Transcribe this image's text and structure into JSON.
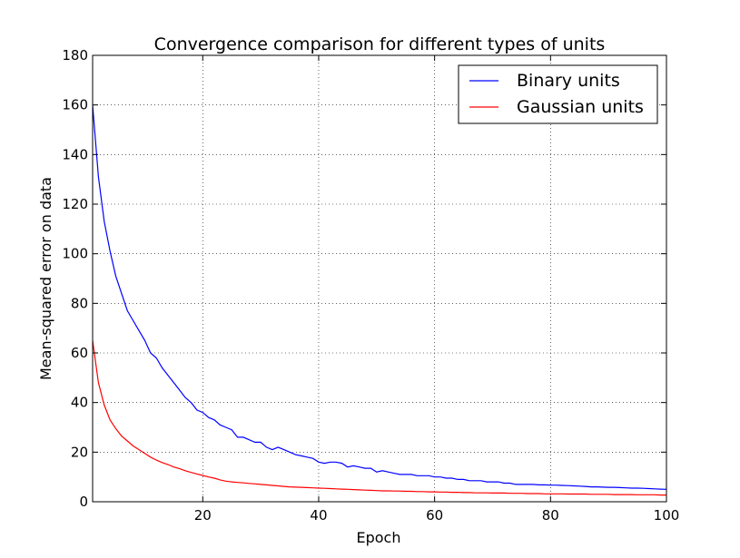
{
  "chart_data": {
    "type": "line",
    "title": "Convergence comparison for different types of units",
    "xlabel": "Epoch",
    "ylabel": "Mean-squared error on data",
    "xlim": [
      1,
      100
    ],
    "ylim": [
      0,
      180
    ],
    "xticks": [
      20,
      40,
      60,
      80,
      100
    ],
    "yticks": [
      0,
      20,
      40,
      60,
      80,
      100,
      120,
      140,
      160,
      180
    ],
    "grid": true,
    "legend_position": "top-right",
    "series": [
      {
        "name": "Binary units",
        "color": "#0000ff",
        "x": [
          1,
          2,
          3,
          4,
          5,
          6,
          7,
          8,
          9,
          10,
          11,
          12,
          13,
          14,
          15,
          16,
          17,
          18,
          19,
          20,
          21,
          22,
          23,
          24,
          25,
          26,
          27,
          28,
          29,
          30,
          31,
          32,
          33,
          34,
          35,
          36,
          37,
          38,
          39,
          40,
          41,
          42,
          43,
          44,
          45,
          46,
          47,
          48,
          49,
          50,
          51,
          52,
          53,
          54,
          55,
          56,
          57,
          58,
          59,
          60,
          61,
          62,
          63,
          64,
          65,
          66,
          67,
          68,
          69,
          70,
          71,
          72,
          73,
          74,
          75,
          76,
          77,
          78,
          79,
          80,
          81,
          82,
          83,
          84,
          85,
          86,
          87,
          88,
          89,
          90,
          91,
          92,
          93,
          94,
          95,
          96,
          97,
          98,
          99,
          100
        ],
        "y": [
          160,
          131,
          113,
          101,
          91,
          84,
          77,
          73,
          69,
          65,
          60,
          58,
          54,
          51,
          48,
          45,
          42,
          40,
          37,
          36,
          34,
          33,
          31,
          30,
          29,
          26,
          26,
          25,
          24,
          24,
          22,
          21,
          22,
          21,
          20,
          19,
          18.5,
          18,
          17.5,
          16,
          15.5,
          16,
          16,
          15.5,
          14,
          14.5,
          14,
          13.5,
          13.5,
          12,
          12.5,
          12,
          11.5,
          11,
          11,
          11,
          10.5,
          10.5,
          10.5,
          10,
          10,
          9.5,
          9.5,
          9,
          9,
          8.5,
          8.5,
          8.5,
          8,
          8,
          8,
          7.5,
          7.5,
          7,
          7,
          7,
          7,
          6.8,
          6.8,
          6.7,
          6.7,
          6.6,
          6.5,
          6.4,
          6.3,
          6.2,
          6,
          6,
          5.9,
          5.8,
          5.8,
          5.7,
          5.6,
          5.5,
          5.5,
          5.4,
          5.3,
          5.2,
          5.1,
          5
        ]
      },
      {
        "name": "Gaussian units",
        "color": "#ff0000",
        "x": [
          1,
          2,
          3,
          4,
          5,
          6,
          7,
          8,
          9,
          10,
          11,
          12,
          13,
          14,
          15,
          16,
          17,
          18,
          19,
          20,
          21,
          22,
          23,
          24,
          25,
          26,
          27,
          28,
          29,
          30,
          31,
          32,
          33,
          34,
          35,
          36,
          37,
          38,
          39,
          40,
          41,
          42,
          43,
          44,
          45,
          46,
          47,
          48,
          49,
          50,
          51,
          52,
          53,
          54,
          55,
          56,
          57,
          58,
          59,
          60,
          61,
          62,
          63,
          64,
          65,
          66,
          67,
          68,
          69,
          70,
          71,
          72,
          73,
          74,
          75,
          76,
          77,
          78,
          79,
          80,
          81,
          82,
          83,
          84,
          85,
          86,
          87,
          88,
          89,
          90,
          91,
          92,
          93,
          94,
          95,
          96,
          97,
          98,
          99,
          100
        ],
        "y": [
          65,
          48,
          39,
          33,
          29.5,
          26.5,
          24.5,
          22.5,
          21,
          19.5,
          18,
          16.8,
          15.8,
          15,
          14,
          13.3,
          12.5,
          11.8,
          11.2,
          10.6,
          10,
          9.5,
          8.8,
          8.3,
          8,
          7.8,
          7.6,
          7.4,
          7.2,
          7,
          6.8,
          6.6,
          6.4,
          6.2,
          6,
          5.9,
          5.8,
          5.7,
          5.6,
          5.5,
          5.4,
          5.3,
          5.2,
          5.1,
          5,
          4.9,
          4.8,
          4.7,
          4.6,
          4.5,
          4.4,
          4.4,
          4.3,
          4.3,
          4.2,
          4.2,
          4.1,
          4.1,
          4,
          4,
          3.9,
          3.9,
          3.8,
          3.8,
          3.7,
          3.7,
          3.6,
          3.6,
          3.6,
          3.5,
          3.5,
          3.5,
          3.4,
          3.4,
          3.4,
          3.3,
          3.3,
          3.3,
          3.2,
          3.2,
          3.2,
          3.2,
          3.1,
          3.1,
          3.1,
          3.1,
          3,
          3,
          3,
          3,
          2.9,
          2.9,
          2.9,
          2.9,
          2.8,
          2.8,
          2.8,
          2.8,
          2.7,
          2.7
        ]
      }
    ]
  }
}
